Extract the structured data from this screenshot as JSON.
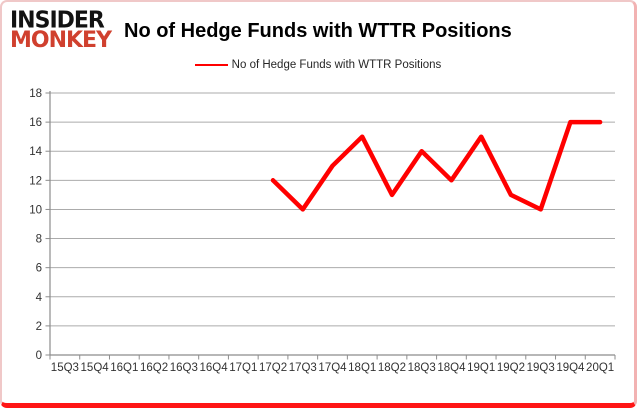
{
  "logo": {
    "line1": "INSIDER",
    "line2": "MONKEY",
    "color1": "#121212",
    "color2": "#d0402e"
  },
  "header": {
    "title": "No of Hedge Funds with WTTR Positions"
  },
  "legend": {
    "label": "No of Hedge Funds with WTTR Positions",
    "line_color": "#ff0000"
  },
  "colors": {
    "series_red": "#ff0000",
    "gridline": "#ababab",
    "axis": "#8c8c8c",
    "tick_text": "#333333",
    "frame_border_pink": "#f0c8c8",
    "frame_border_red": "#ff1515"
  },
  "chart_data": {
    "type": "line",
    "title": "No of Hedge Funds with WTTR Positions",
    "categories": [
      "15Q3",
      "15Q4",
      "16Q1",
      "16Q2",
      "16Q3",
      "16Q4",
      "17Q1",
      "17Q2",
      "17Q3",
      "17Q4",
      "18Q1",
      "18Q2",
      "18Q3",
      "18Q4",
      "19Q1",
      "19Q2",
      "19Q3",
      "19Q4",
      "20Q1"
    ],
    "series": [
      {
        "name": "No of Hedge Funds with WTTR Positions",
        "color": "#ff0000",
        "values": [
          null,
          null,
          null,
          null,
          null,
          null,
          null,
          12,
          10,
          13,
          15,
          11,
          14,
          12,
          15,
          11,
          10,
          16,
          16
        ]
      }
    ],
    "ylim": [
      0,
      18
    ],
    "ytick_step": 2,
    "grid": true,
    "legend_position": "top",
    "xlabel": "",
    "ylabel": ""
  }
}
